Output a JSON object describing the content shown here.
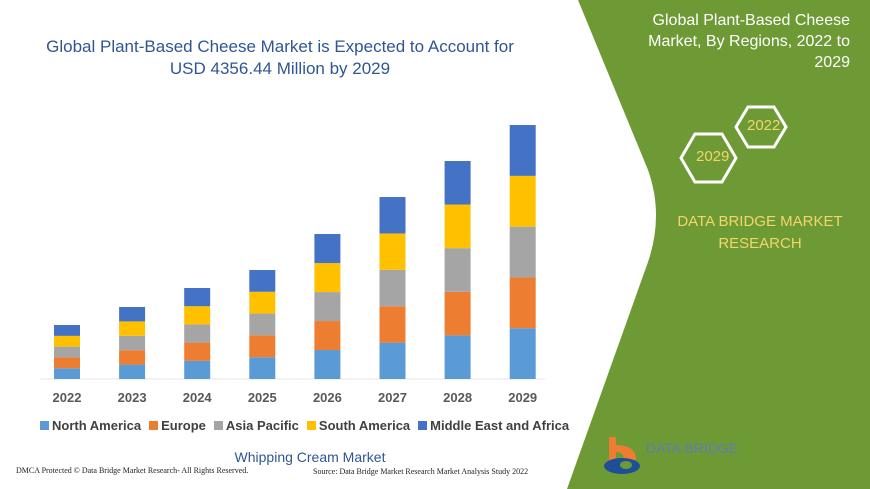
{
  "chart_data": {
    "type": "bar",
    "stacked": true,
    "title": "Global Plant-Based Cheese Market is Expected to Account for USD 4356.44 Million by 2029",
    "categories": [
      "2022",
      "2023",
      "2024",
      "2025",
      "2026",
      "2027",
      "2028",
      "2029"
    ],
    "series": [
      {
        "name": "North America",
        "color": "#5b9bd5",
        "values": [
          185,
          247,
          312,
          374,
          497,
          624,
          748,
          871
        ]
      },
      {
        "name": "Europe",
        "color": "#ed7d31",
        "values": [
          185,
          247,
          312,
          374,
          497,
          624,
          748,
          871
        ]
      },
      {
        "name": "Asia Pacific",
        "color": "#a5a5a5",
        "values": [
          185,
          247,
          312,
          374,
          497,
          624,
          748,
          871
        ]
      },
      {
        "name": "South America",
        "color": "#ffc000",
        "values": [
          185,
          247,
          312,
          374,
          497,
          624,
          748,
          871
        ]
      },
      {
        "name": "Middle East and Africa",
        "color": "#4472c4",
        "values": [
          186,
          247,
          313,
          373,
          499,
          625,
          747,
          872
        ]
      }
    ],
    "ylim": [
      0,
      4356.44
    ],
    "grid": false,
    "legend": "bottom"
  },
  "side_panel": {
    "title": "Global Plant-Based Cheese Market, By Regions, 2022 to 2029",
    "hex_2022": "2022",
    "hex_2029": "2029",
    "brand": "DATA BRIDGE MARKET RESEARCH",
    "color": "#6e9a35"
  },
  "footer": {
    "subtitle": "Whipping Cream Market",
    "dmca": "DMCA Protected © Data Bridge Market Research- All Rights Reserved.",
    "source": "Source: Data Bridge Market Research Market Analysis Study 2022",
    "logo_text": "DATA BRIDGE"
  }
}
